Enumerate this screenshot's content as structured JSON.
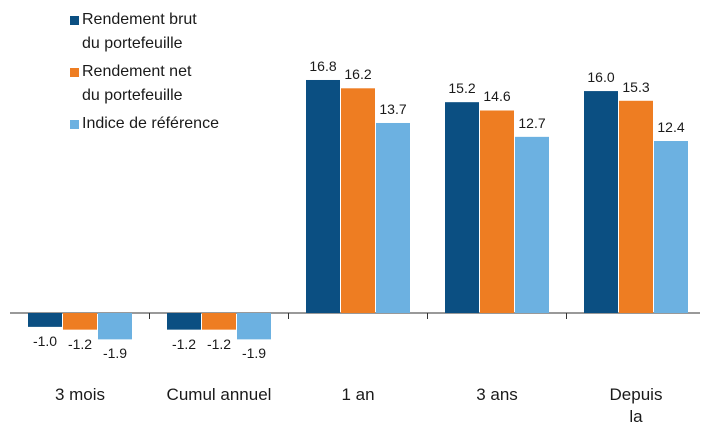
{
  "chart_data": {
    "type": "bar",
    "categories": [
      "3 mois",
      "Cumul annuel",
      "1 an",
      "3 ans",
      "Depuis\nla création"
    ],
    "series": [
      {
        "name": "Rendement brut\ndu portefeuille",
        "color": "#0b4f82",
        "values": [
          -1.0,
          -1.2,
          16.8,
          15.2,
          16.0
        ],
        "value_labels": [
          "-1.0",
          "-1.2",
          "16.8",
          "15.2",
          "16.0"
        ]
      },
      {
        "name": "Rendement net\ndu portefeuille",
        "color": "#ee7d22",
        "values": [
          -1.2,
          -1.2,
          16.2,
          14.6,
          15.3
        ],
        "value_labels": [
          "-1.2",
          "-1.2",
          "16.2",
          "14.6",
          "15.3"
        ]
      },
      {
        "name": "Indice de référence",
        "color": "#6cb1e1",
        "values": [
          -1.9,
          -1.9,
          13.7,
          12.7,
          12.4
        ],
        "value_labels": [
          "-1.9",
          "-1.9",
          "13.7",
          "12.7",
          "12.4"
        ]
      }
    ],
    "legend": "upper-left"
  }
}
